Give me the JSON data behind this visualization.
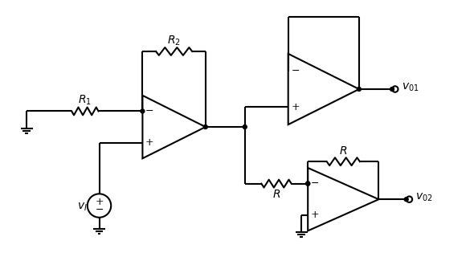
{
  "background_color": "#ffffff",
  "line_color": "#000000",
  "line_width": 1.5,
  "figsize": [
    5.9,
    3.2
  ],
  "dpi": 100,
  "labels": {
    "R1": "$R_1$",
    "R2": "$R_2$",
    "R_top": "$R$",
    "R_bottom": "$R$",
    "R_fb": "$R$",
    "vI": "$v_I$",
    "v01": "$v_{01}$",
    "v02": "$v_{02}$",
    "minus": "−",
    "plus": "+"
  }
}
